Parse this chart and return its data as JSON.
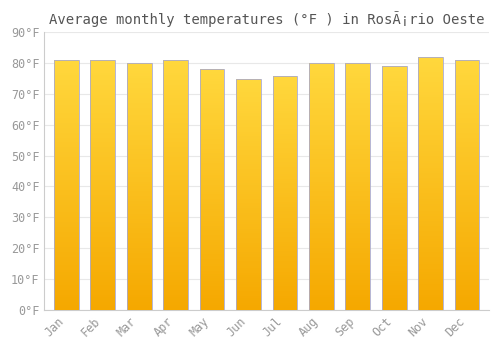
{
  "title": "Average monthly temperatures (°F ) in RosÃ¡rio Oeste",
  "months": [
    "Jan",
    "Feb",
    "Mar",
    "Apr",
    "May",
    "Jun",
    "Jul",
    "Aug",
    "Sep",
    "Oct",
    "Nov",
    "Dec"
  ],
  "values": [
    81,
    81,
    80,
    81,
    78,
    75,
    76,
    80,
    80,
    79,
    82,
    81
  ],
  "bar_color_bottom": "#F5A800",
  "bar_color_top": "#FFD700",
  "bar_edge_color": "#AAAACC",
  "background_color": "#FFFFFF",
  "grid_color": "#E8E8E8",
  "ylim": [
    0,
    90
  ],
  "yticks": [
    0,
    10,
    20,
    30,
    40,
    50,
    60,
    70,
    80,
    90
  ],
  "ytick_labels": [
    "0°F",
    "10°F",
    "20°F",
    "30°F",
    "40°F",
    "50°F",
    "60°F",
    "70°F",
    "80°F",
    "90°F"
  ],
  "title_fontsize": 10,
  "tick_fontsize": 8.5,
  "font_color": "#999999"
}
